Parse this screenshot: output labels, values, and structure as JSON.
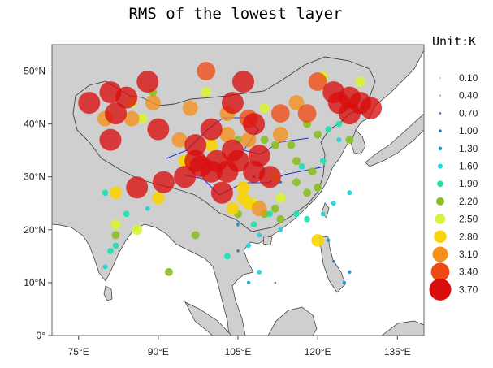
{
  "chart_data": {
    "type": "scatter",
    "title": "RMS of the lowest layer",
    "unit_label": "Unit:K",
    "xlim": [
      70,
      140
    ],
    "ylim": [
      0,
      55
    ],
    "x_ticks": [
      {
        "value": 75,
        "label": "75°E"
      },
      {
        "value": 90,
        "label": "90°E"
      },
      {
        "value": 105,
        "label": "105°E"
      },
      {
        "value": 120,
        "label": "120°E"
      },
      {
        "value": 135,
        "label": "135°E"
      }
    ],
    "y_ticks": [
      {
        "value": 0,
        "label": "0°"
      },
      {
        "value": 10,
        "label": "10°N"
      },
      {
        "value": 20,
        "label": "20°N"
      },
      {
        "value": 30,
        "label": "30°N"
      },
      {
        "value": 40,
        "label": "40°N"
      },
      {
        "value": 50,
        "label": "50°N"
      }
    ],
    "legend": [
      {
        "label": "0.10",
        "value": 0.1,
        "color": "#b8b8e4"
      },
      {
        "label": "0.40",
        "value": 0.4,
        "color": "#9a9ad8"
      },
      {
        "label": "0.70",
        "value": 0.7,
        "color": "#5c6bc0"
      },
      {
        "label": "1.00",
        "value": 1.0,
        "color": "#2a6db0"
      },
      {
        "label": "1.30",
        "value": 1.3,
        "color": "#1a9ad0"
      },
      {
        "label": "1.60",
        "value": 1.6,
        "color": "#22d3dc"
      },
      {
        "label": "1.90",
        "value": 1.9,
        "color": "#22e0b0"
      },
      {
        "label": "2.20",
        "value": 2.2,
        "color": "#8cbf26"
      },
      {
        "label": "2.50",
        "value": 2.5,
        "color": "#d9f23a"
      },
      {
        "label": "2.80",
        "value": 2.8,
        "color": "#f7d40a"
      },
      {
        "label": "3.10",
        "value": 3.1,
        "color": "#f5901a"
      },
      {
        "label": "3.40",
        "value": 3.4,
        "color": "#f04a14"
      },
      {
        "label": "3.70",
        "value": 3.7,
        "color": "#d90d0d"
      }
    ],
    "points": [
      [
        81,
        46,
        3.7
      ],
      [
        84,
        45,
        3.7
      ],
      [
        88,
        48,
        3.7
      ],
      [
        77,
        44,
        3.7
      ],
      [
        82,
        42,
        3.7
      ],
      [
        81,
        37,
        3.7
      ],
      [
        90,
        39,
        3.7
      ],
      [
        106,
        48,
        3.7
      ],
      [
        104,
        44,
        3.7
      ],
      [
        97,
        36,
        3.7
      ],
      [
        100,
        39,
        3.7
      ],
      [
        108,
        40,
        3.7
      ],
      [
        86,
        28,
        3.7
      ],
      [
        91,
        29,
        3.7
      ],
      [
        95,
        30,
        3.7
      ],
      [
        98,
        32,
        3.7
      ],
      [
        101,
        33,
        3.7
      ],
      [
        103,
        31,
        3.7
      ],
      [
        105,
        33,
        3.7
      ],
      [
        109,
        34,
        3.7
      ],
      [
        111,
        30,
        3.7
      ],
      [
        102,
        27,
        3.7
      ],
      [
        108,
        31,
        3.7
      ],
      [
        123,
        46,
        3.7
      ],
      [
        126,
        45,
        3.7
      ],
      [
        128,
        44,
        3.7
      ],
      [
        130,
        43,
        3.7
      ],
      [
        124,
        44,
        3.7
      ],
      [
        126,
        42,
        3.7
      ],
      [
        100,
        31,
        3.7
      ],
      [
        97,
        33,
        3.7
      ],
      [
        104,
        35,
        3.7
      ],
      [
        99,
        50,
        3.4
      ],
      [
        120,
        48,
        3.4
      ],
      [
        113,
        42,
        3.4
      ],
      [
        118,
        42,
        3.4
      ],
      [
        107,
        41,
        3.4
      ],
      [
        89,
        44,
        3.1
      ],
      [
        85,
        41,
        3.1
      ],
      [
        96,
        43,
        3.1
      ],
      [
        94,
        37,
        3.1
      ],
      [
        103,
        42,
        3.1
      ],
      [
        116,
        44,
        3.1
      ],
      [
        80,
        41,
        3.1
      ],
      [
        107,
        37,
        3.1
      ],
      [
        113,
        38,
        3.1
      ],
      [
        109,
        24,
        3.1
      ],
      [
        103,
        38,
        3.1
      ],
      [
        82,
        27,
        2.8
      ],
      [
        90,
        26,
        2.8
      ],
      [
        104,
        24,
        2.8
      ],
      [
        100,
        36,
        2.8
      ],
      [
        106,
        28,
        2.8
      ],
      [
        95,
        33,
        2.8
      ],
      [
        106,
        26,
        2.8
      ],
      [
        120,
        18,
        2.8
      ],
      [
        107,
        25,
        2.8
      ],
      [
        85,
        44,
        2.5
      ],
      [
        99,
        46,
        2.5
      ],
      [
        95,
        33,
        2.5
      ],
      [
        87,
        41,
        2.5
      ],
      [
        82,
        21,
        2.5
      ],
      [
        86,
        20,
        2.5
      ],
      [
        112,
        30,
        2.5
      ],
      [
        108,
        25,
        2.5
      ],
      [
        113,
        26,
        2.5
      ],
      [
        128,
        48,
        2.5
      ],
      [
        121,
        49,
        2.5
      ],
      [
        110,
        43,
        2.5
      ],
      [
        89,
        46,
        2.2
      ],
      [
        82,
        19,
        2.2
      ],
      [
        97,
        19,
        2.2
      ],
      [
        105,
        23,
        2.2
      ],
      [
        110,
        23,
        2.2
      ],
      [
        113,
        22,
        2.2
      ],
      [
        116,
        29,
        2.2
      ],
      [
        119,
        31,
        2.2
      ],
      [
        120,
        28,
        2.2
      ],
      [
        118,
        27,
        2.2
      ],
      [
        116,
        33,
        2.2
      ],
      [
        115,
        36,
        2.2
      ],
      [
        120,
        38,
        2.2
      ],
      [
        112,
        36,
        2.2
      ],
      [
        110,
        37,
        2.2
      ],
      [
        126,
        37,
        2.2
      ],
      [
        92,
        12,
        2.2
      ],
      [
        105,
        37,
        2.2
      ],
      [
        118,
        40,
        2.2
      ],
      [
        112,
        24,
        2.2
      ],
      [
        80,
        27,
        1.9
      ],
      [
        84,
        23,
        1.9
      ],
      [
        103,
        15,
        1.9
      ],
      [
        116,
        23,
        1.9
      ],
      [
        111,
        23,
        1.9
      ],
      [
        108,
        21,
        1.9
      ],
      [
        82,
        17,
        1.9
      ],
      [
        117,
        32,
        1.9
      ],
      [
        121,
        33,
        1.9
      ],
      [
        81,
        16,
        1.9
      ],
      [
        122,
        39,
        1.9
      ],
      [
        124,
        40,
        1.9
      ],
      [
        118,
        22,
        1.9
      ],
      [
        88,
        24,
        1.6
      ],
      [
        107,
        17,
        1.6
      ],
      [
        126,
        27,
        1.6
      ],
      [
        80,
        13,
        1.6
      ],
      [
        109,
        12,
        1.6
      ],
      [
        123,
        25,
        1.6
      ],
      [
        113,
        20,
        1.6
      ],
      [
        109,
        19,
        1.6
      ],
      [
        124,
        37,
        1.6
      ],
      [
        121,
        23,
        1.6
      ],
      [
        105,
        21,
        1.3
      ],
      [
        125,
        10,
        1.3
      ],
      [
        122,
        18,
        1.3
      ],
      [
        107,
        10,
        1.3
      ],
      [
        126,
        12,
        1.3
      ],
      [
        108,
        30,
        1.0
      ],
      [
        113,
        29,
        1.0
      ],
      [
        105,
        16,
        1.0
      ],
      [
        123,
        14,
        1.0
      ],
      [
        112,
        10,
        0.7
      ]
    ]
  }
}
